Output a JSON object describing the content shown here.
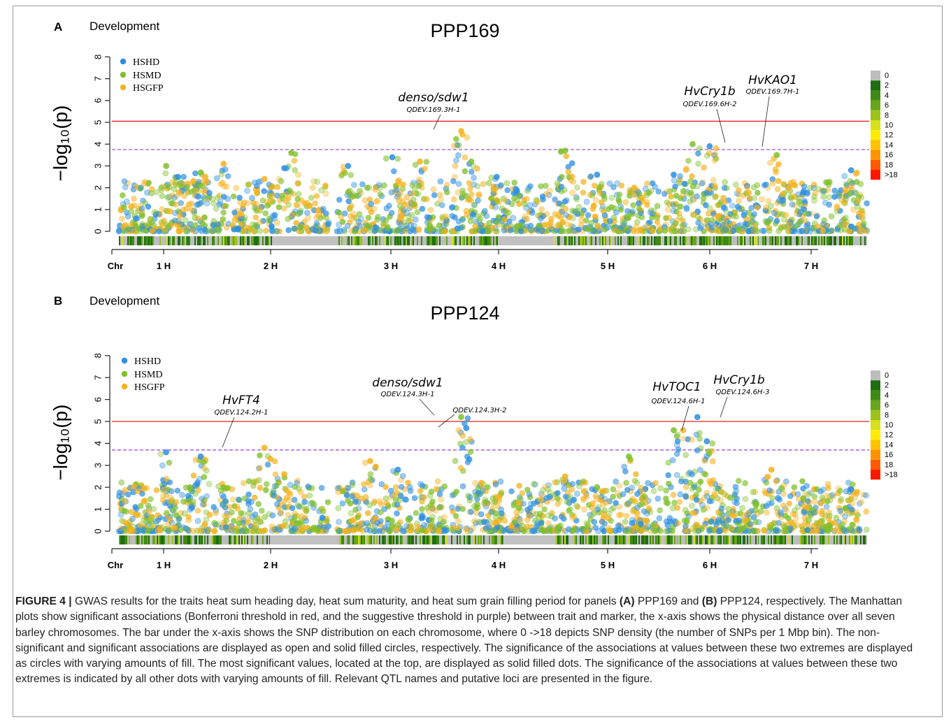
{
  "colors": {
    "HSHD": "#2e8fe0",
    "HSMD": "#7fbf2a",
    "HSGFP": "#f5b21e",
    "bonferroni": "#e3211d",
    "suggestive": "#a24fe0"
  },
  "density_scale": {
    "labels": [
      "0",
      "2",
      "4",
      "6",
      "8",
      "10",
      "12",
      "14",
      "16",
      "18",
      ">18"
    ],
    "colors": [
      "#bdbdbd",
      "#1f6e12",
      "#3f8a14",
      "#67a51a",
      "#9cc21c",
      "#d8e01a",
      "#ffeb00",
      "#ffc200",
      "#ff9200",
      "#ff5a00",
      "#ff1800"
    ]
  },
  "caption": {
    "figure_label": "FIGURE 4 |",
    "text_1": " GWAS results for the traits heat sum heading day, heat sum maturity, and heat sum grain filling period for panels ",
    "panel_a_ref": "(A)",
    "text_2": " PPP169 and ",
    "panel_b_ref": "(B)",
    "text_3": " PPP124, respectively. The Manhattan plots show significant associations (Bonferroni threshold in red, and the suggestive threshold in purple) between trait and marker, the x-axis shows the physical distance over all seven barley chromosomes. The bar under the x-axis shows the SNP distribution on each chromosome, where 0 ->18 depicts SNP density (the number of SNPs per 1 Mbp bin). The non-significant and significant associations are displayed as open and solid filled circles, respectively. The significance of the associations at values between these two extremes are displayed as circles with varying amounts of fill. The most significant values, located at the top, are displayed as solid filled dots. The significance of the associations at values between these two extremes is indicated by all other dots with varying amounts of fill. Relevant QTL names and putative loci are presented in the figure."
  },
  "chart_data": [
    {
      "type": "scatter",
      "panel_label": "A",
      "section": "Development",
      "title": "PPP169",
      "ylabel": "−log₁₀(p)",
      "ylim": [
        0,
        8
      ],
      "yticks": [
        "0",
        "1",
        "2",
        "3",
        "4",
        "5",
        "6",
        "7",
        "8"
      ],
      "xlabel": "Chr",
      "xticks": [
        "1 H",
        "2 H",
        "3 H",
        "4 H",
        "5 H",
        "6 H",
        "7 H"
      ],
      "bonferroni_threshold": 5.05,
      "suggestive_threshold": 3.75,
      "legend": [
        "HSHD",
        "HSMD",
        "HSGFP"
      ],
      "chromosome_peaks": [
        [
          {
            "x": 0.52,
            "y": 3.0
          },
          {
            "x": 0.65,
            "y": 2.5
          },
          {
            "x": 0.82,
            "y": 2.3
          },
          {
            "x": 0.9,
            "y": 2.7
          },
          {
            "x": 0.95,
            "y": 2.5
          }
        ],
        [
          {
            "x": 1.1,
            "y": 3.1
          },
          {
            "x": 1.45,
            "y": 2.4
          },
          {
            "x": 1.62,
            "y": 2.9
          },
          {
            "x": 1.68,
            "y": 3.6
          }
        ],
        [
          {
            "x": 2.1,
            "y": 3.0
          },
          {
            "x": 2.5,
            "y": 3.4
          },
          {
            "x": 2.75,
            "y": 3.2
          }
        ],
        [
          {
            "x": 3.1,
            "y": 4.6
          },
          {
            "x": 3.2,
            "y": 3.2
          },
          {
            "x": 3.45,
            "y": 2.5
          }
        ],
        [
          {
            "x": 4.1,
            "y": 3.7
          },
          {
            "x": 4.4,
            "y": 2.6
          },
          {
            "x": 4.75,
            "y": 2.0
          }
        ],
        [
          {
            "x": 5.1,
            "y": 2.6
          },
          {
            "x": 5.3,
            "y": 4.0
          },
          {
            "x": 5.48,
            "y": 3.9
          }
        ],
        [
          {
            "x": 6.15,
            "y": 3.5
          },
          {
            "x": 6.4,
            "y": 1.8
          },
          {
            "x": 6.85,
            "y": 2.8
          }
        ]
      ],
      "annotations": [
        {
          "gene": "denso/sdw1",
          "qtl": "QDEV.169.3H-1",
          "x": 3.1,
          "y": 4.6
        },
        {
          "gene": "HvCry1b",
          "qtl": "QDEV.169.6H-2",
          "x": 5.32,
          "y": 4.0
        },
        {
          "gene": "HvKAO1",
          "qtl": "QDEV.169.7H-1",
          "x": 5.48,
          "y": 3.85
        }
      ]
    },
    {
      "type": "scatter",
      "panel_label": "B",
      "section": "Development",
      "title": "PPP124",
      "ylabel": "−log₁₀(p)",
      "ylim": [
        0,
        8
      ],
      "yticks": [
        "0",
        "1",
        "2",
        "3",
        "4",
        "5",
        "6",
        "7",
        "8"
      ],
      "xlabel": "Chr",
      "xticks": [
        "1 H",
        "2 H",
        "3 H",
        "4 H",
        "5 H",
        "6 H",
        "7 H"
      ],
      "bonferroni_threshold": 5.0,
      "suggestive_threshold": 3.7,
      "legend": [
        "HSHD",
        "HSMD",
        "HSGFP"
      ],
      "chromosome_peaks": [
        [
          {
            "x": 0.52,
            "y": 3.6
          },
          {
            "x": 0.78,
            "y": 2.0
          },
          {
            "x": 0.9,
            "y": 3.4
          }
        ],
        [
          {
            "x": 1.1,
            "y": 2.0
          },
          {
            "x": 1.45,
            "y": 3.8
          },
          {
            "x": 1.5,
            "y": 3.3
          },
          {
            "x": 1.62,
            "y": 2.6
          }
        ],
        [
          {
            "x": 2.3,
            "y": 3.2
          },
          {
            "x": 2.55,
            "y": 2.8
          }
        ],
        [
          {
            "x": 3.1,
            "y": 5.2
          },
          {
            "x": 3.15,
            "y": 4.7
          },
          {
            "x": 3.3,
            "y": 2.2
          }
        ],
        [
          {
            "x": 4.1,
            "y": 2.5
          },
          {
            "x": 4.4,
            "y": 2.0
          },
          {
            "x": 4.7,
            "y": 3.4
          }
        ],
        [
          {
            "x": 5.1,
            "y": 4.6
          },
          {
            "x": 5.2,
            "y": 4.6
          },
          {
            "x": 5.35,
            "y": 5.2
          },
          {
            "x": 5.45,
            "y": 4.1
          }
        ],
        [
          {
            "x": 6.1,
            "y": 2.8
          },
          {
            "x": 6.4,
            "y": 1.5
          },
          {
            "x": 6.85,
            "y": 1.9
          }
        ]
      ],
      "annotations": [
        {
          "gene": "HvFT4",
          "qtl": "QDEV.124.2H-1",
          "x": 1.5,
          "y": 3.75
        },
        {
          "gene": "denso/sdw1",
          "qtl": "QDEV.124.3H-1",
          "x": 3.1,
          "y": 5.25
        },
        {
          "gene": "",
          "qtl": "QDEV.124.3H-2",
          "x": 3.15,
          "y": 4.7
        },
        {
          "gene": "HvTOC1",
          "qtl": "QDEV.124.6H-1",
          "x": 5.15,
          "y": 4.6
        },
        {
          "gene": "HvCry1b",
          "qtl": "QDEV.124.6H-3",
          "x": 5.4,
          "y": 5.2
        }
      ]
    }
  ]
}
